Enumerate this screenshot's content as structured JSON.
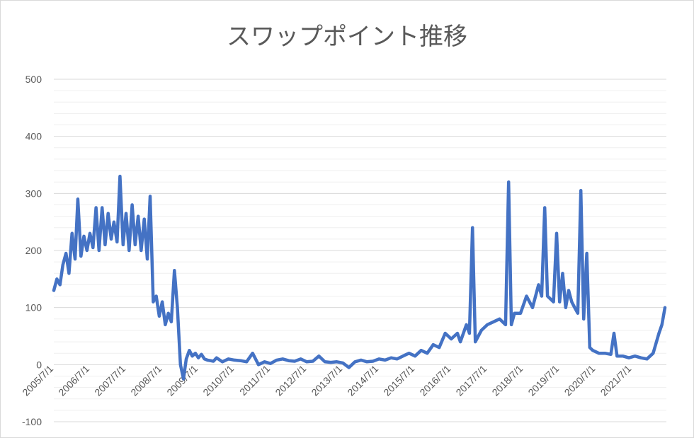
{
  "chart_data": {
    "type": "line",
    "title": "スワップポイント推移",
    "xlabel": "",
    "ylabel": "",
    "ylim": [
      -100,
      500
    ],
    "y_ticks": [
      -100,
      0,
      100,
      200,
      300,
      400,
      500
    ],
    "grid": true,
    "legend": "none",
    "x_tick_labels": [
      "2005/7/1",
      "2006/7/1",
      "2007/7/1",
      "2008/7/1",
      "2009/7/1",
      "2010/7/1",
      "2011/7/1",
      "2012/7/1",
      "2013/7/1",
      "2014/7/1",
      "2015/7/1",
      "2016/7/1",
      "2017/7/1",
      "2018/7/1",
      "2019/7/1",
      "2020/7/1",
      "2021/7/1"
    ],
    "series": [
      {
        "color": "#4472c4",
        "points": [
          [
            "2005-07-01",
            130
          ],
          [
            "2005-08-01",
            150
          ],
          [
            "2005-09-01",
            140
          ],
          [
            "2005-10-01",
            175
          ],
          [
            "2005-11-01",
            195
          ],
          [
            "2005-12-01",
            160
          ],
          [
            "2006-01-01",
            230
          ],
          [
            "2006-02-01",
            185
          ],
          [
            "2006-03-01",
            290
          ],
          [
            "2006-04-01",
            190
          ],
          [
            "2006-05-01",
            225
          ],
          [
            "2006-06-01",
            200
          ],
          [
            "2006-07-01",
            230
          ],
          [
            "2006-08-01",
            205
          ],
          [
            "2006-09-01",
            275
          ],
          [
            "2006-10-01",
            200
          ],
          [
            "2006-11-01",
            275
          ],
          [
            "2006-12-01",
            210
          ],
          [
            "2007-01-01",
            265
          ],
          [
            "2007-02-01",
            220
          ],
          [
            "2007-03-01",
            250
          ],
          [
            "2007-04-01",
            215
          ],
          [
            "2007-05-01",
            330
          ],
          [
            "2007-06-01",
            210
          ],
          [
            "2007-07-01",
            265
          ],
          [
            "2007-08-01",
            200
          ],
          [
            "2007-09-01",
            280
          ],
          [
            "2007-10-01",
            210
          ],
          [
            "2007-11-01",
            260
          ],
          [
            "2007-12-01",
            200
          ],
          [
            "2008-01-01",
            255
          ],
          [
            "2008-02-01",
            185
          ],
          [
            "2008-03-01",
            295
          ],
          [
            "2008-04-01",
            110
          ],
          [
            "2008-05-01",
            120
          ],
          [
            "2008-06-01",
            85
          ],
          [
            "2008-07-01",
            110
          ],
          [
            "2008-08-01",
            70
          ],
          [
            "2008-09-01",
            90
          ],
          [
            "2008-10-01",
            75
          ],
          [
            "2008-11-01",
            165
          ],
          [
            "2008-12-01",
            100
          ],
          [
            "2009-01-01",
            0
          ],
          [
            "2009-02-01",
            -25
          ],
          [
            "2009-03-01",
            10
          ],
          [
            "2009-04-01",
            25
          ],
          [
            "2009-05-01",
            15
          ],
          [
            "2009-06-01",
            20
          ],
          [
            "2009-07-01",
            12
          ],
          [
            "2009-08-01",
            18
          ],
          [
            "2009-09-01",
            10
          ],
          [
            "2009-10-01",
            8
          ],
          [
            "2009-11-01",
            7
          ],
          [
            "2009-12-01",
            6
          ],
          [
            "2010-01-01",
            12
          ],
          [
            "2010-03-01",
            5
          ],
          [
            "2010-05-01",
            10
          ],
          [
            "2010-07-01",
            8
          ],
          [
            "2010-09-01",
            7
          ],
          [
            "2010-11-01",
            5
          ],
          [
            "2011-01-01",
            20
          ],
          [
            "2011-03-01",
            0
          ],
          [
            "2011-05-01",
            5
          ],
          [
            "2011-07-01",
            2
          ],
          [
            "2011-09-01",
            8
          ],
          [
            "2011-11-01",
            10
          ],
          [
            "2012-01-01",
            7
          ],
          [
            "2012-03-01",
            6
          ],
          [
            "2012-05-01",
            10
          ],
          [
            "2012-07-01",
            5
          ],
          [
            "2012-09-01",
            6
          ],
          [
            "2012-11-01",
            15
          ],
          [
            "2013-01-01",
            5
          ],
          [
            "2013-03-01",
            4
          ],
          [
            "2013-05-01",
            5
          ],
          [
            "2013-07-01",
            3
          ],
          [
            "2013-09-01",
            -5
          ],
          [
            "2013-11-01",
            5
          ],
          [
            "2014-01-01",
            8
          ],
          [
            "2014-03-01",
            5
          ],
          [
            "2014-05-01",
            6
          ],
          [
            "2014-07-01",
            10
          ],
          [
            "2014-09-01",
            8
          ],
          [
            "2014-11-01",
            12
          ],
          [
            "2015-01-01",
            10
          ],
          [
            "2015-03-01",
            15
          ],
          [
            "2015-05-01",
            20
          ],
          [
            "2015-07-01",
            15
          ],
          [
            "2015-09-01",
            25
          ],
          [
            "2015-11-01",
            20
          ],
          [
            "2016-01-01",
            35
          ],
          [
            "2016-03-01",
            30
          ],
          [
            "2016-05-01",
            55
          ],
          [
            "2016-07-01",
            45
          ],
          [
            "2016-09-01",
            55
          ],
          [
            "2016-10-01",
            40
          ],
          [
            "2016-12-01",
            70
          ],
          [
            "2017-01-01",
            55
          ],
          [
            "2017-02-01",
            240
          ],
          [
            "2017-03-01",
            40
          ],
          [
            "2017-05-01",
            60
          ],
          [
            "2017-07-01",
            70
          ],
          [
            "2017-09-01",
            75
          ],
          [
            "2017-11-01",
            80
          ],
          [
            "2018-01-01",
            70
          ],
          [
            "2018-02-01",
            320
          ],
          [
            "2018-03-01",
            70
          ],
          [
            "2018-04-01",
            90
          ],
          [
            "2018-06-01",
            90
          ],
          [
            "2018-08-01",
            120
          ],
          [
            "2018-10-01",
            100
          ],
          [
            "2018-12-01",
            140
          ],
          [
            "2019-01-01",
            120
          ],
          [
            "2019-02-01",
            275
          ],
          [
            "2019-03-01",
            120
          ],
          [
            "2019-05-01",
            110
          ],
          [
            "2019-06-01",
            230
          ],
          [
            "2019-07-01",
            110
          ],
          [
            "2019-08-01",
            160
          ],
          [
            "2019-09-01",
            100
          ],
          [
            "2019-10-01",
            130
          ],
          [
            "2019-11-01",
            110
          ],
          [
            "2019-12-01",
            100
          ],
          [
            "2020-01-01",
            90
          ],
          [
            "2020-02-01",
            305
          ],
          [
            "2020-03-01",
            80
          ],
          [
            "2020-04-01",
            195
          ],
          [
            "2020-05-01",
            30
          ],
          [
            "2020-06-01",
            25
          ],
          [
            "2020-08-01",
            20
          ],
          [
            "2020-10-01",
            20
          ],
          [
            "2020-12-01",
            18
          ],
          [
            "2021-01-01",
            55
          ],
          [
            "2021-02-01",
            15
          ],
          [
            "2021-04-01",
            15
          ],
          [
            "2021-06-01",
            12
          ],
          [
            "2021-08-01",
            15
          ],
          [
            "2021-10-01",
            12
          ],
          [
            "2021-12-01",
            10
          ],
          [
            "2022-02-01",
            20
          ],
          [
            "2022-04-01",
            55
          ],
          [
            "2022-05-01",
            70
          ],
          [
            "2022-06-01",
            100
          ]
        ]
      }
    ]
  }
}
